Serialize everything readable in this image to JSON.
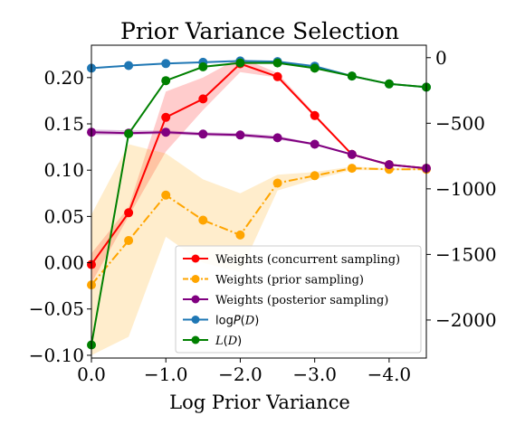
{
  "chart_data": {
    "type": "line",
    "title": "Prior Variance Selection",
    "xlabel": "Log Prior Variance",
    "ylabel": "",
    "ylabel_right": "",
    "x": [
      0.0,
      -0.5,
      -1.0,
      -1.5,
      -2.0,
      -2.5,
      -3.0,
      -3.5,
      -4.0,
      -4.5
    ],
    "xlim": [
      0.0,
      -4.5
    ],
    "x_ticks": [
      0.0,
      -1.0,
      -2.0,
      -3.0,
      -4.0
    ],
    "x_tick_labels": [
      "0.0",
      "-1.0",
      "-2.0",
      "-3.0",
      "-4.0"
    ],
    "ylim_left": [
      -0.103,
      0.235
    ],
    "y_ticks_left": [
      -0.1,
      -0.05,
      0.0,
      0.05,
      0.1,
      0.15,
      0.2
    ],
    "y_tick_labels_left": [
      "-0.10",
      "-0.05",
      "0.00",
      "0.05",
      "0.10",
      "0.15",
      "0.20"
    ],
    "ylim_right": [
      -2290,
      95
    ],
    "y_ticks_right": [
      0,
      -500,
      -1000,
      -1500,
      -2000
    ],
    "y_tick_labels_right": [
      "0",
      "-500",
      "-1000",
      "-1500",
      "-2000"
    ],
    "grid": false,
    "legend_position": "lower-right",
    "series": [
      {
        "name": "Weights (concurrent sampling)",
        "axis": "left",
        "color": "#ff0000",
        "linestyle": "solid",
        "values": [
          -0.002,
          0.054,
          0.157,
          0.177,
          0.215,
          0.201,
          0.159,
          0.117,
          0.106,
          0.102
        ],
        "band_lower": [
          -0.022,
          0.05,
          0.12,
          0.165,
          0.206,
          0.2,
          0.157,
          0.116,
          0.105,
          0.101
        ],
        "band_upper": [
          0.01,
          0.06,
          0.185,
          0.2,
          0.222,
          0.205,
          0.161,
          0.118,
          0.107,
          0.103
        ]
      },
      {
        "name": "Weights (prior sampling)",
        "axis": "left",
        "color": "#ffa500",
        "linestyle": "dashdot",
        "values": [
          -0.024,
          0.024,
          0.073,
          0.046,
          0.03,
          0.086,
          0.094,
          0.102,
          0.101,
          0.101
        ],
        "band_lower": [
          -0.1,
          -0.08,
          0.028,
          0.0,
          -0.01,
          0.078,
          0.09,
          0.1,
          0.1,
          0.1
        ],
        "band_upper": [
          0.052,
          0.128,
          0.118,
          0.09,
          0.075,
          0.095,
          0.098,
          0.104,
          0.102,
          0.102
        ]
      },
      {
        "name": "Weights (posterior sampling)",
        "axis": "left",
        "color": "#800080",
        "linestyle": "solid",
        "values": [
          0.141,
          0.14,
          0.141,
          0.139,
          0.138,
          0.135,
          0.128,
          0.117,
          0.106,
          0.102
        ],
        "band_lower": [
          0.138,
          0.138,
          0.139,
          0.137,
          0.136,
          0.133,
          0.127,
          0.116,
          0.105,
          0.101
        ],
        "band_upper": [
          0.144,
          0.143,
          0.143,
          0.141,
          0.14,
          0.137,
          0.129,
          0.118,
          0.107,
          0.103
        ]
      },
      {
        "name": "log P(D)",
        "axis": "right",
        "color": "#1f77b4",
        "linestyle": "solid",
        "values": [
          -80,
          -60,
          -45,
          -35,
          -25,
          -30,
          -65,
          -140,
          -200,
          -225
        ]
      },
      {
        "name": "L(D)",
        "axis": "right",
        "color": "#008000",
        "linestyle": "solid",
        "values": [
          -2190,
          -580,
          -175,
          -70,
          -40,
          -40,
          -80,
          -140,
          -200,
          -225
        ]
      }
    ]
  }
}
